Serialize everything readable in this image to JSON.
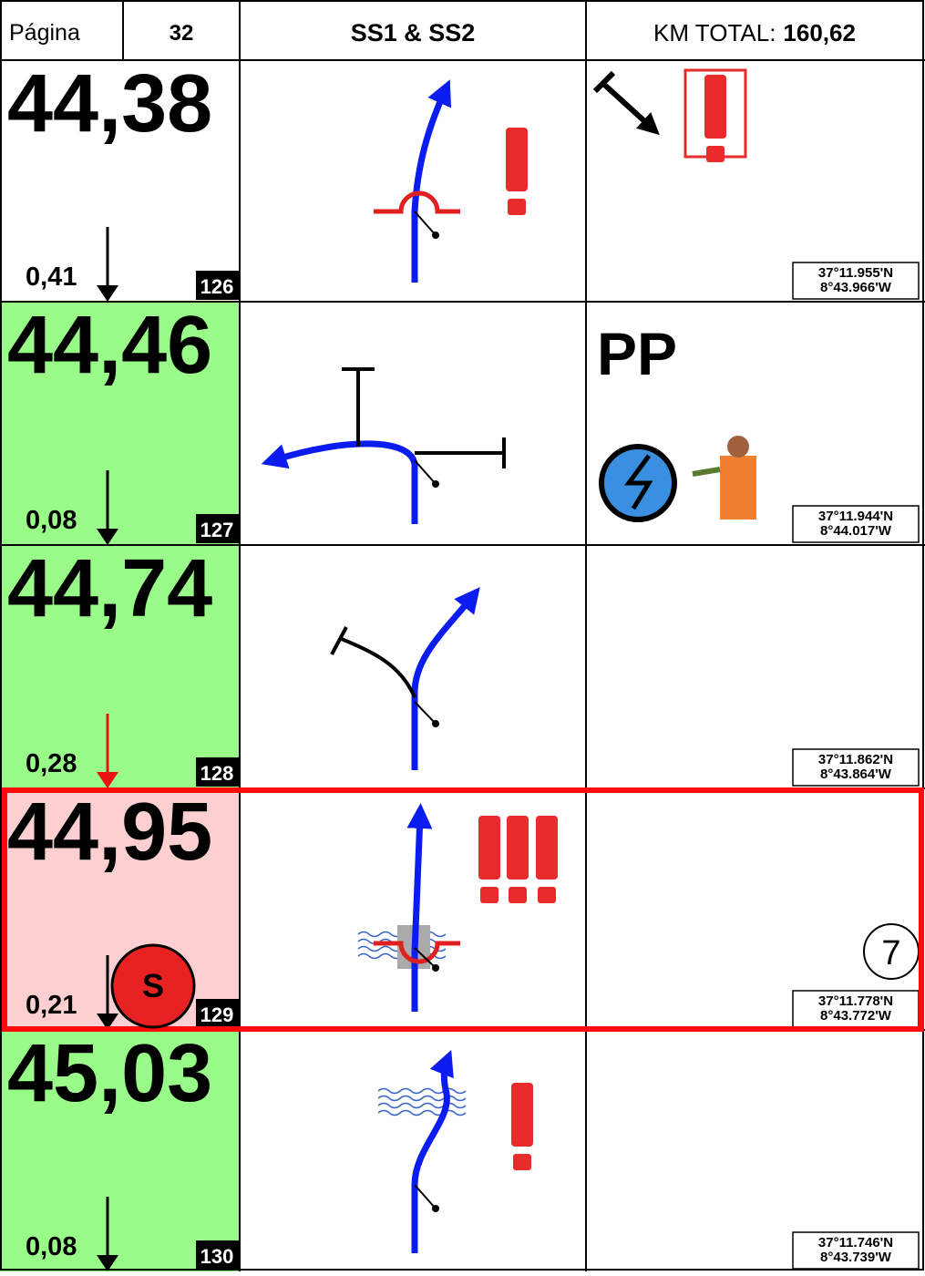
{
  "header": {
    "page_label": "Página",
    "page_number": "32",
    "stage": "SS1 & SS2",
    "km_total_label": "KM TOTAL:",
    "km_total": "160,62"
  },
  "rows": [
    {
      "total": "44,38",
      "partial": "0,41",
      "index": "126",
      "lat": "37°11.955'N",
      "lon": "8°43.966'W",
      "background": "#ffffff",
      "arrow_color": "#000000"
    },
    {
      "total": "44,46",
      "partial": "0,08",
      "index": "127",
      "lat": "37°11.944'N",
      "lon": "8°44.017'W",
      "note": "PP",
      "background": "#99fb88",
      "arrow_color": "#000000"
    },
    {
      "total": "44,74",
      "partial": "0,28",
      "index": "128",
      "lat": "37°11.862'N",
      "lon": "8°43.864'W",
      "background": "#99fb88",
      "arrow_color": "#ee1111"
    },
    {
      "total": "44,95",
      "partial": "0,21",
      "index": "129",
      "lat": "37°11.778'N",
      "lon": "8°43.772'W",
      "badge": "S",
      "note": "7",
      "background": "#fcd0d0",
      "arrow_color": "#000000"
    },
    {
      "total": "45,03",
      "partial": "0,08",
      "index": "130",
      "lat": "37°11.746'N",
      "lon": "8°43.739'W",
      "background": "#99fb88",
      "arrow_color": "#000000"
    }
  ]
}
